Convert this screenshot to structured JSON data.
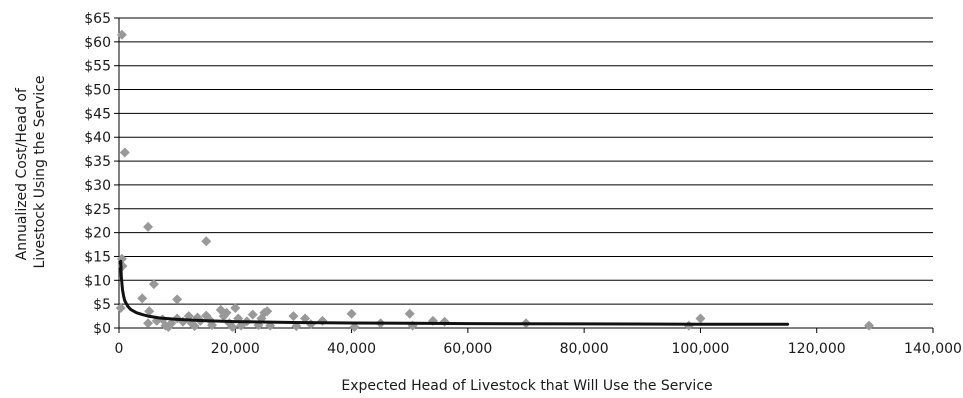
{
  "chart_data": {
    "type": "scatter",
    "title": "",
    "xlabel": "Expected Head of Livestock that Will Use the Service",
    "ylabel_lines": [
      "Annualized Cost/Head of",
      "Livestock Using the Service"
    ],
    "xlim": [
      0,
      140000
    ],
    "ylim": [
      0,
      65
    ],
    "x_ticks": [
      0,
      20000,
      40000,
      60000,
      80000,
      100000,
      120000,
      140000
    ],
    "x_tick_labels": [
      "0",
      "20,000",
      "40,000",
      "60,000",
      "80,000",
      "100,000",
      "120,000",
      "140,000"
    ],
    "y_ticks": [
      0,
      5,
      10,
      15,
      20,
      25,
      30,
      35,
      40,
      45,
      50,
      55,
      60,
      65
    ],
    "y_tick_labels": [
      "$0",
      "$5",
      "$10",
      "$15",
      "$20",
      "$25",
      "$30",
      "$35",
      "$40",
      "$45",
      "$50",
      "$55",
      "$60",
      "$65"
    ],
    "grid": "horizontal",
    "series": [
      {
        "kind": "points",
        "color": "#999999",
        "points": [
          [
            500,
            61.5
          ],
          [
            1000,
            36.8
          ],
          [
            500,
            14.5
          ],
          [
            600,
            13.0
          ],
          [
            300,
            4.2
          ],
          [
            5000,
            21.2
          ],
          [
            15000,
            18.2
          ],
          [
            6000,
            9.2
          ],
          [
            4000,
            6.2
          ],
          [
            10000,
            6.0
          ],
          [
            5200,
            3.5
          ],
          [
            5000,
            1.0
          ],
          [
            6500,
            1.5
          ],
          [
            7500,
            1.8
          ],
          [
            8000,
            0.5
          ],
          [
            8500,
            0.2
          ],
          [
            9000,
            1.0
          ],
          [
            10000,
            2.0
          ],
          [
            11000,
            1.3
          ],
          [
            12000,
            2.5
          ],
          [
            12500,
            1.0
          ],
          [
            13000,
            0.4
          ],
          [
            13500,
            2.2
          ],
          [
            14000,
            1.5
          ],
          [
            15000,
            2.6
          ],
          [
            15500,
            1.8
          ],
          [
            16000,
            0.6
          ],
          [
            17500,
            3.8
          ],
          [
            18000,
            2.5
          ],
          [
            18500,
            3.2
          ],
          [
            19000,
            1.0
          ],
          [
            19500,
            0.2
          ],
          [
            20000,
            4.2
          ],
          [
            20500,
            2.0
          ],
          [
            21000,
            0.5
          ],
          [
            22000,
            1.4
          ],
          [
            23000,
            2.8
          ],
          [
            24000,
            0.6
          ],
          [
            24500,
            2.0
          ],
          [
            25000,
            3.2
          ],
          [
            25500,
            3.5
          ],
          [
            26000,
            0.5
          ],
          [
            30000,
            2.5
          ],
          [
            30500,
            0.4
          ],
          [
            32000,
            2.0
          ],
          [
            33000,
            0.8
          ],
          [
            35000,
            1.5
          ],
          [
            40000,
            3.0
          ],
          [
            40500,
            0.2
          ],
          [
            45000,
            1.0
          ],
          [
            50000,
            3.0
          ],
          [
            50500,
            0.5
          ],
          [
            54000,
            1.5
          ],
          [
            56000,
            1.3
          ],
          [
            70000,
            1.0
          ],
          [
            98000,
            0.5
          ],
          [
            100000,
            2.0
          ],
          [
            129000,
            0.5
          ]
        ]
      },
      {
        "kind": "trend",
        "color": "#111111",
        "points": [
          [
            300,
            14.0
          ],
          [
            400,
            10.8
          ],
          [
            600,
            8.0
          ],
          [
            800,
            6.6
          ],
          [
            1000,
            5.7
          ],
          [
            1500,
            4.6
          ],
          [
            2000,
            3.9
          ],
          [
            3000,
            3.2
          ],
          [
            4000,
            2.8
          ],
          [
            5000,
            2.5
          ],
          [
            7000,
            2.1
          ],
          [
            10000,
            1.8
          ],
          [
            15000,
            1.5
          ],
          [
            20000,
            1.35
          ],
          [
            30000,
            1.15
          ],
          [
            40000,
            1.05
          ],
          [
            50000,
            0.98
          ],
          [
            60000,
            0.92
          ],
          [
            80000,
            0.85
          ],
          [
            100000,
            0.8
          ],
          [
            115000,
            0.77
          ]
        ]
      }
    ]
  }
}
